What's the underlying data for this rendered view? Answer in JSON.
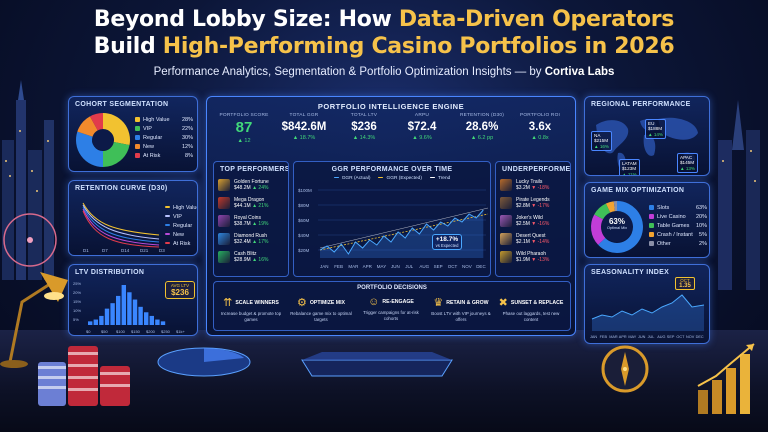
{
  "title": {
    "line1_white": "Beyond Lobby Size: How ",
    "line1_gold": "Data-Driven Operators",
    "line2_white": "Build ",
    "line2_gold": "High-Performing Casino Portfolios in 2026",
    "subtitle": "Performance Analytics, Segmentation & Portfolio Optimization Insights — by ",
    "subtitle_brand": "Cortiva Labs"
  },
  "cohort": {
    "title": "COHORT SEGMENTATION",
    "items": [
      {
        "label": "High Value",
        "value": "28%",
        "color": "#f2c230"
      },
      {
        "label": "VIP",
        "value": "22%",
        "color": "#3fbf58"
      },
      {
        "label": "Regular",
        "value": "30%",
        "color": "#2d7fe6"
      },
      {
        "label": "New",
        "value": "12%",
        "color": "#f28a2c"
      },
      {
        "label": "At Risk",
        "value": "8%",
        "color": "#e23b4b"
      }
    ]
  },
  "retention": {
    "title": "RETENTION CURVE (D30)",
    "legend": [
      "High Value",
      "VIP",
      "Regular",
      "New",
      "At Risk"
    ],
    "ticks": [
      "D1",
      "D7",
      "D14",
      "D21",
      "D30"
    ]
  },
  "ltv": {
    "title": "LTV DISTRIBUTION",
    "callout_label": "AVG LTV",
    "callout_value": "$236",
    "yticks": [
      "25%",
      "20%",
      "15%",
      "10%",
      "5%"
    ],
    "xticks": [
      "$0",
      "$50",
      "$100",
      "$150",
      "$200",
      "$250",
      "$1k+"
    ],
    "values": [
      2,
      3,
      5,
      9,
      12,
      16,
      22,
      18,
      14,
      10,
      7,
      5,
      3,
      2
    ]
  },
  "engine": {
    "title": "PORTFOLIO INTELLIGENCE ENGINE",
    "kpis": [
      {
        "label": "PORTFOLIO SCORE",
        "value": "87",
        "change": "▲ 12"
      },
      {
        "label": "TOTAL GGR",
        "value": "$842.6M",
        "change": "▲ 18.7%"
      },
      {
        "label": "TOTAL LTV",
        "value": "$236",
        "change": "▲ 14.3%"
      },
      {
        "label": "ARPU",
        "value": "$72.4",
        "change": "▲ 9.6%"
      },
      {
        "label": "RETENTION (D30)",
        "value": "28.6%",
        "change": "▲ 6.2 pp"
      },
      {
        "label": "PORTFOLIO ROI",
        "value": "3.6x",
        "change": "▲ 0.8x"
      }
    ]
  },
  "top_performers": {
    "title": "TOP PERFORMERS",
    "items": [
      {
        "name": "Golden Fortune",
        "value": "$48.2M",
        "change": "▲ 24%",
        "color": "#d9a030"
      },
      {
        "name": "Mega Dragon",
        "value": "$44.1M",
        "change": "▲ 21%",
        "color": "#c0392b"
      },
      {
        "name": "Royal Coins",
        "value": "$38.7M",
        "change": "▲ 19%",
        "color": "#8e44ad"
      },
      {
        "name": "Diamond Rush",
        "value": "$32.4M",
        "change": "▲ 17%",
        "color": "#2e86de"
      },
      {
        "name": "Cash Blitz",
        "value": "$28.9M",
        "change": "▲ 16%",
        "color": "#27ae60"
      }
    ]
  },
  "ggr_chart": {
    "title": "GGR PERFORMANCE OVER TIME",
    "legend": [
      "GGR (Actual)",
      "GGR (Expected)",
      "Trend"
    ],
    "yticks": [
      "$100M",
      "$80M",
      "$60M",
      "$40M",
      "$20M"
    ],
    "months": [
      "JAN",
      "FEB",
      "MAR",
      "APR",
      "MAY",
      "JUN",
      "JUL",
      "AUG",
      "SEP",
      "OCT",
      "NOV",
      "DEC"
    ],
    "callout_value": "+18.7%",
    "callout_label": "vs Expected"
  },
  "underperformers": {
    "title": "UNDERPERFORMERS",
    "items": [
      {
        "name": "Lucky Trails",
        "value": "$3.2M",
        "change": "▼ -18%",
        "color": "#b86b2a"
      },
      {
        "name": "Pirate Legends",
        "value": "$2.8M",
        "change": "▼ -17%",
        "color": "#7f5a3a"
      },
      {
        "name": "Joker's Wild",
        "value": "$2.5M",
        "change": "▼ -16%",
        "color": "#9b59b6"
      },
      {
        "name": "Desert Quest",
        "value": "$2.1M",
        "change": "▼ -14%",
        "color": "#d4a15a"
      },
      {
        "name": "Wild Pharaoh",
        "value": "$1.9M",
        "change": "▼ -13%",
        "color": "#c49a2c"
      }
    ]
  },
  "decisions": {
    "title": "PORTFOLIO DECISIONS",
    "items": [
      {
        "icon": "⇈",
        "name": "trophy-icon",
        "title": "SCALE WINNERS",
        "text": "Increase budget & promote top games"
      },
      {
        "icon": "⚙",
        "name": "gear-icon",
        "title": "OPTIMIZE MIX",
        "text": "Rebalance game mix to optimal targets"
      },
      {
        "icon": "☺",
        "name": "users-icon",
        "title": "RE-ENGAGE",
        "text": "Trigger campaigns for at-risk cohorts"
      },
      {
        "icon": "♛",
        "name": "crown-icon",
        "title": "RETAIN & GROW",
        "text": "Boost LTV with VIP journeys & offers"
      },
      {
        "icon": "✖",
        "name": "trash-icon",
        "title": "SUNSET & REPLACE",
        "text": "Phase out laggards, test new content"
      }
    ]
  },
  "regional": {
    "title": "REGIONAL PERFORMANCE",
    "regions": [
      {
        "name": "NA",
        "value": "$215M",
        "change": "▲ 16%"
      },
      {
        "name": "EU",
        "value": "$188M",
        "change": "▲ 14%"
      },
      {
        "name": "LATAM",
        "value": "$123M",
        "change": "▲ 11%"
      },
      {
        "name": "APAC",
        "value": "$145M",
        "change": "▲ 13%"
      }
    ]
  },
  "game_mix": {
    "title": "GAME MIX OPTIMIZATION",
    "center_value": "63%",
    "center_label": "Optimal Mix",
    "items": [
      {
        "label": "Slots",
        "value": "63%",
        "color": "#2d7fe6"
      },
      {
        "label": "Live Casino",
        "value": "20%",
        "color": "#c13dd8"
      },
      {
        "label": "Table Games",
        "value": "10%",
        "color": "#3fbf58"
      },
      {
        "label": "Crash / Instant",
        "value": "5%",
        "color": "#f2a330"
      },
      {
        "label": "Other",
        "value": "2%",
        "color": "#8a8fa8"
      }
    ]
  },
  "seasonality": {
    "title": "SEASONALITY INDEX",
    "callout_month": "OCT",
    "callout_value": "1.35",
    "months": [
      "JAN",
      "FEB",
      "MAR",
      "APR",
      "MAY",
      "JUN",
      "JUL",
      "AUG",
      "SEP",
      "OCT",
      "NOV",
      "DEC"
    ]
  }
}
